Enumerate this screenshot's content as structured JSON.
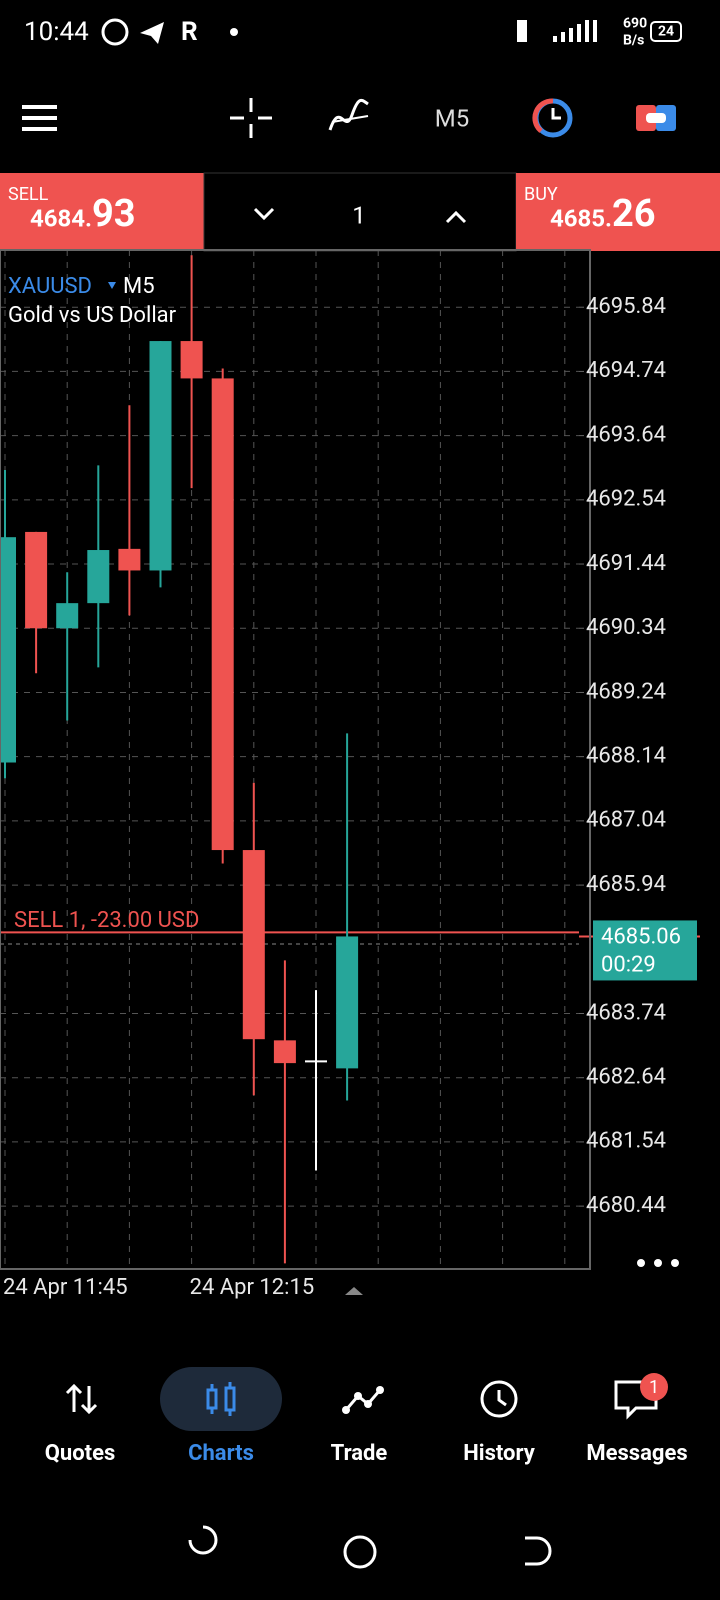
{
  "status_bar": {
    "time": "10:44",
    "net_speed_value": "690",
    "net_speed_unit": "B/s",
    "battery": "24"
  },
  "toolbar": {
    "timeframe": "M5"
  },
  "trade_panel": {
    "sell": {
      "label": "SELL",
      "price_main": "4684.",
      "price_pips": "93"
    },
    "volume": "1",
    "buy": {
      "label": "BUY",
      "price_main": "4685.",
      "price_pips": "26"
    }
  },
  "chart_data": {
    "type": "candlestick",
    "symbol": "XAUUSD",
    "timeframe": "M5",
    "description": "Gold vs US Dollar",
    "categories": [
      "24 Apr 11:45",
      null,
      null,
      null,
      null,
      null,
      "24 Apr 12:15",
      null,
      null,
      null,
      null,
      null
    ],
    "open": [
      4688.04,
      4691.99,
      4690.34,
      4690.77,
      4691.7,
      4691.33,
      4695.26,
      4694.62,
      4686.54,
      4683.28,
      4682.92,
      4682.8
    ],
    "high": [
      4693.05,
      4691.99,
      4691.3,
      4693.13,
      4694.16,
      4695.26,
      4696.73,
      4694.79,
      4687.69,
      4684.65,
      4684.14,
      4688.54
    ],
    "low": [
      4687.77,
      4689.57,
      4688.76,
      4689.67,
      4690.56,
      4691.04,
      4692.74,
      4686.31,
      4682.34,
      4679.46,
      4681.05,
      4682.25
    ],
    "close": [
      4691.9,
      4690.34,
      4690.77,
      4691.68,
      4691.33,
      4695.26,
      4694.62,
      4686.54,
      4683.3,
      4682.89,
      4682.92,
      4685.06
    ],
    "up_color": "#26a69a",
    "down_color": "#ef5350",
    "doji_color": "#ffffff",
    "ylim": [
      4679.38,
      4696.82
    ],
    "yticks": [
      4680.44,
      4681.54,
      4682.64,
      4683.74,
      4685.94,
      4687.04,
      4688.14,
      4689.24,
      4690.34,
      4691.44,
      4692.54,
      4693.64,
      4694.74,
      4695.84
    ],
    "grid": true,
    "position": {
      "label": "SELL 1,  -23.00 USD",
      "price": 4685.13,
      "color": "#ef5350"
    },
    "bid_line": 4684.93,
    "current_price": {
      "value": 4685.06,
      "countdown": "00:29",
      "color": "#26a69a"
    }
  },
  "bottom_nav": {
    "items": [
      {
        "label": "Quotes"
      },
      {
        "label": "Charts"
      },
      {
        "label": "Trade"
      },
      {
        "label": "History"
      },
      {
        "label": "Messages"
      }
    ],
    "messages_badge": "1"
  }
}
